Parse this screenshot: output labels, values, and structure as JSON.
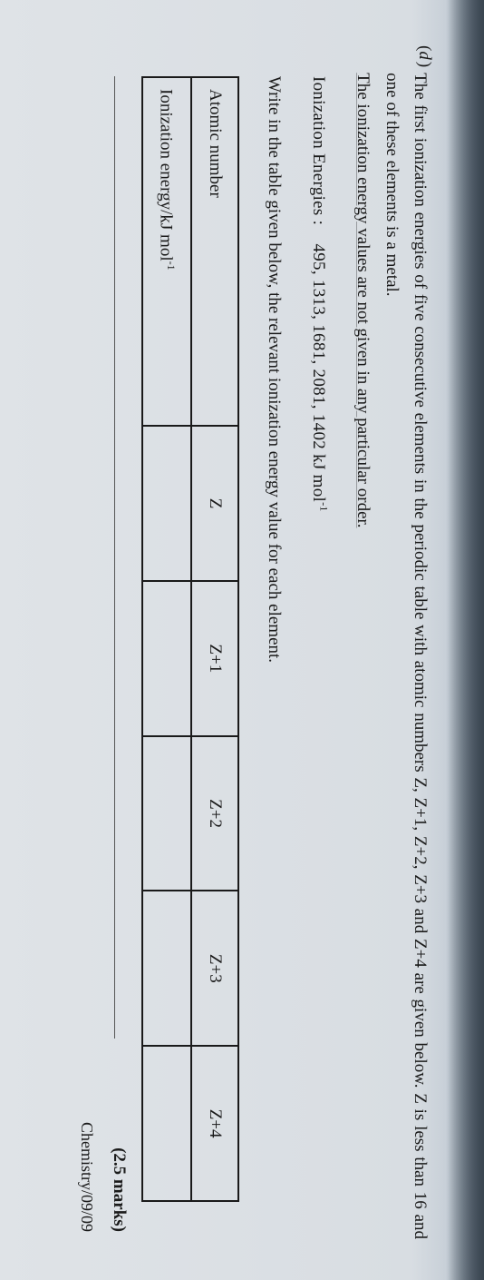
{
  "question": {
    "letter": "d",
    "line1_part1": "The first ionization energies of five consecutive elements in the periodic table with atomic numbers",
    "line1_part2_a": "Z, Z+1, Z+2, Z+3 and Z+4 are given below. Z is less than 16 and one of these elements is a metal.",
    "line2": "The ionization energy values are not given in any particular order.",
    "energies_label": "Ionization Energies :",
    "energies_values": "495,   1313,   1681,   2081,   1402  kJ mol",
    "energies_unit_sup": "-1",
    "write_line": "Write in the table given below, the relevant ionization energy value for each element."
  },
  "table": {
    "row1_label": "Atomic number",
    "headers": [
      "Z",
      "Z+1",
      "Z+2",
      "Z+3",
      "Z+4"
    ],
    "row2_label_a": "Ionization energy/kJ mol",
    "row2_label_sup": "-1"
  },
  "marks": "(2.5 marks)",
  "credit": "Chemistry/09/09",
  "top_corner": ""
}
